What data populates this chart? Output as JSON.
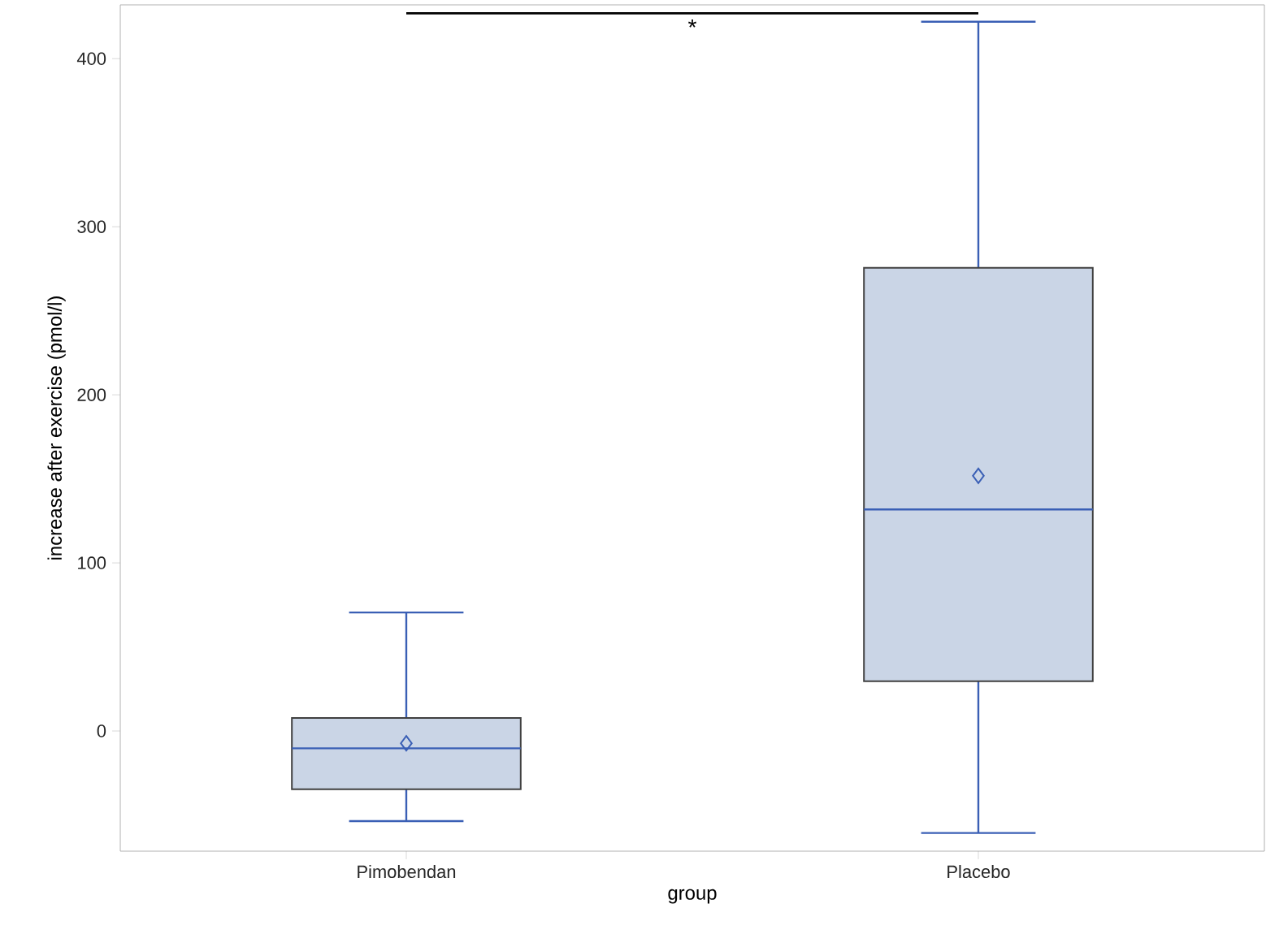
{
  "chart_data": {
    "type": "box",
    "categories": [
      "Pimobendan",
      "Placebo"
    ],
    "boxes": [
      {
        "low": -53.6,
        "q1": -34.7,
        "median": -10.3,
        "q3": 7.7,
        "high": 70.5,
        "mean": -7.3
      },
      {
        "low": -60.7,
        "q1": 29.6,
        "median": 131.8,
        "q3": 275.6,
        "high": 422,
        "mean": 151.8
      }
    ],
    "color": "#cad5e6",
    "xlabel": "group",
    "ylabel": "increase after exercise (pmol/l)",
    "ylim": [
      -71.5,
      432
    ],
    "yticks": [
      0,
      100,
      200,
      300,
      400
    ],
    "annotations": [
      "*"
    ]
  }
}
